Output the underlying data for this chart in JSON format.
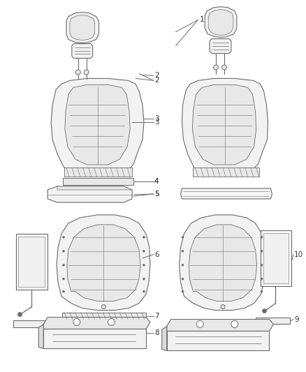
{
  "bg_color": "#ffffff",
  "line_color": "#6b6b6b",
  "label_color": "#333333",
  "fig_width": 4.38,
  "fig_height": 5.33,
  "dpi": 100
}
